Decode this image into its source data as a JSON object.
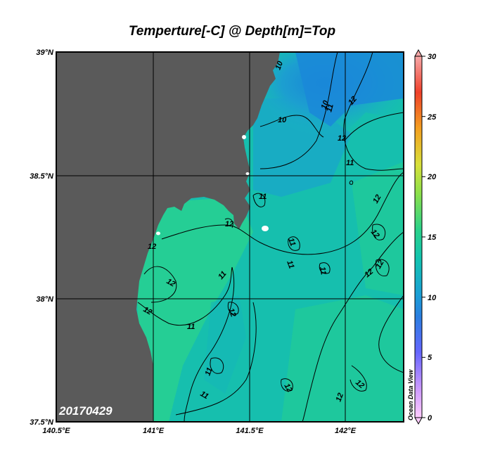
{
  "title": "Temperture[-C] @ Depth[m]=Top",
  "date_stamp": "20170429",
  "credit": "Ocean Data View",
  "axes": {
    "lon_ticks": [
      "140.5°E",
      "141°E",
      "141.5°E",
      "142°E"
    ],
    "lat_ticks": [
      "39°N",
      "38.5°N",
      "38°N",
      "37.5°N"
    ]
  },
  "colorbar": {
    "ticks": [
      "30",
      "25",
      "20",
      "15",
      "10",
      "5",
      "0"
    ],
    "min": 0,
    "max": 30
  },
  "contour_labels": [
    {
      "text": "10"
    },
    {
      "text": "10"
    },
    {
      "text": "10"
    },
    {
      "text": "11"
    },
    {
      "text": "12"
    },
    {
      "text": "12"
    },
    {
      "text": "11"
    },
    {
      "text": "12"
    },
    {
      "text": "11"
    },
    {
      "text": "12"
    },
    {
      "text": "11"
    },
    {
      "text": "11"
    },
    {
      "text": "11"
    },
    {
      "text": "12"
    },
    {
      "text": "12"
    },
    {
      "text": "12"
    },
    {
      "text": "12"
    },
    {
      "text": "11"
    },
    {
      "text": "11"
    },
    {
      "text": "12"
    },
    {
      "text": "12"
    },
    {
      "text": "12"
    },
    {
      "text": "11"
    },
    {
      "text": "11"
    },
    {
      "text": "12"
    },
    {
      "text": "12"
    },
    {
      "text": "12"
    }
  ],
  "colors": {
    "land": "#5a5a5a",
    "ocean_warm": "#29d28a",
    "ocean_mid": "#14c0b0",
    "ocean_cool": "#1a8fd6"
  }
}
